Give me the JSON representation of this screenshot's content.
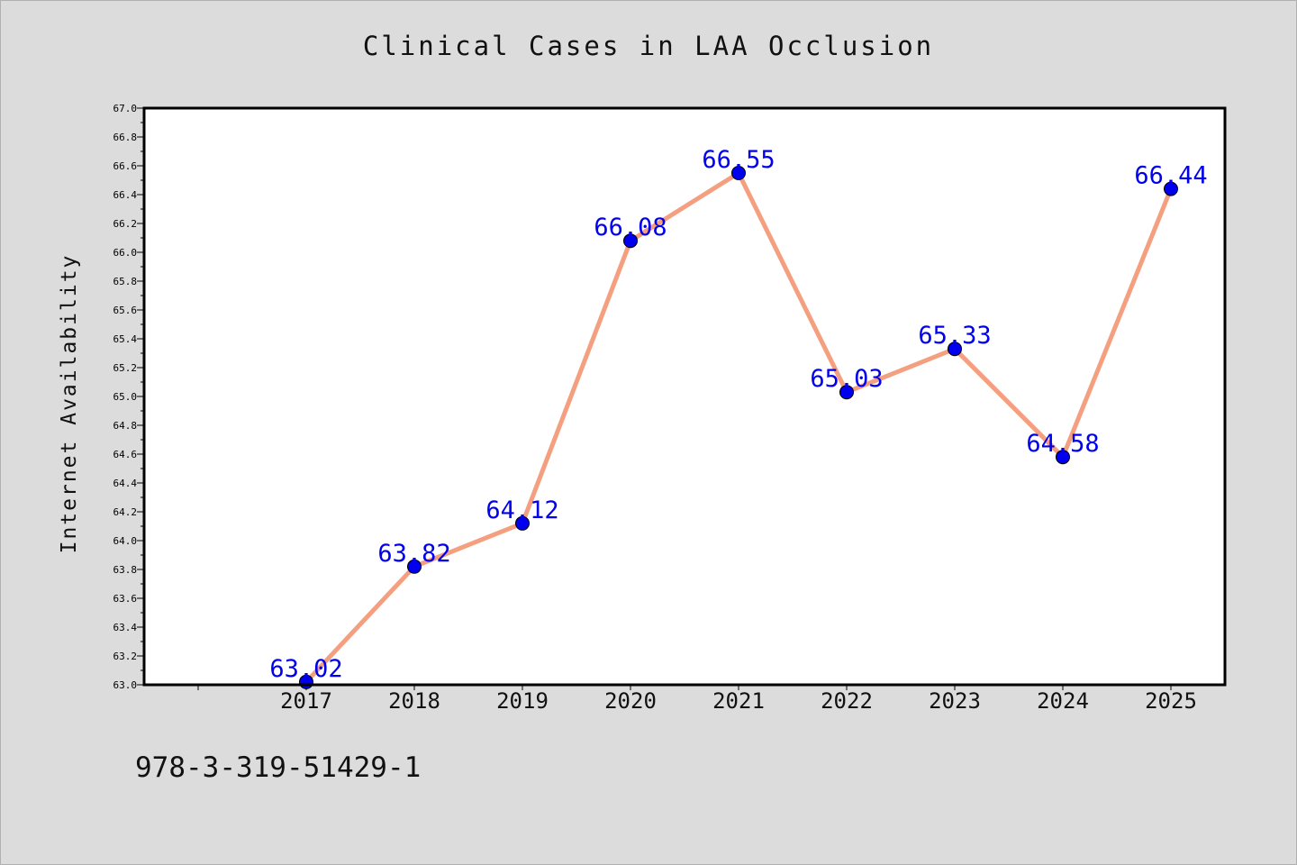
{
  "chart_data": {
    "type": "line",
    "title": "Clinical Cases in LAA Occlusion",
    "xlabel": "",
    "ylabel": "Internet Availability",
    "categories": [
      "2017",
      "2018",
      "2019",
      "2020",
      "2021",
      "2022",
      "2023",
      "2024",
      "2025"
    ],
    "series": [
      {
        "values": [
          63.02,
          63.82,
          64.12,
          66.08,
          66.55,
          65.03,
          65.33,
          64.58,
          66.44
        ],
        "data_labels": [
          "63.02",
          "63.82",
          "64.12",
          "66.08",
          "66.55",
          "65.03",
          "65.33",
          "64.58",
          "66.44"
        ],
        "line_color": "#f4a080",
        "marker_color": "#0000ee"
      }
    ],
    "ylim": [
      63.0,
      67.0
    ],
    "y_ticks": [
      "63.0",
      "63.2",
      "63.4",
      "63.6",
      "63.8",
      "64.0",
      "64.2",
      "64.4",
      "64.6",
      "64.8",
      "65.0",
      "65.2",
      "65.4",
      "65.6",
      "65.8",
      "66.0",
      "66.2",
      "66.4",
      "66.6",
      "66.8",
      "67.0"
    ],
    "grid": false,
    "legend": "none"
  },
  "footer_text": "978-3-319-51429-1",
  "colors": {
    "background": "#dcdcdc",
    "plot_background": "#ffffff",
    "label_color": "#0000ee"
  }
}
